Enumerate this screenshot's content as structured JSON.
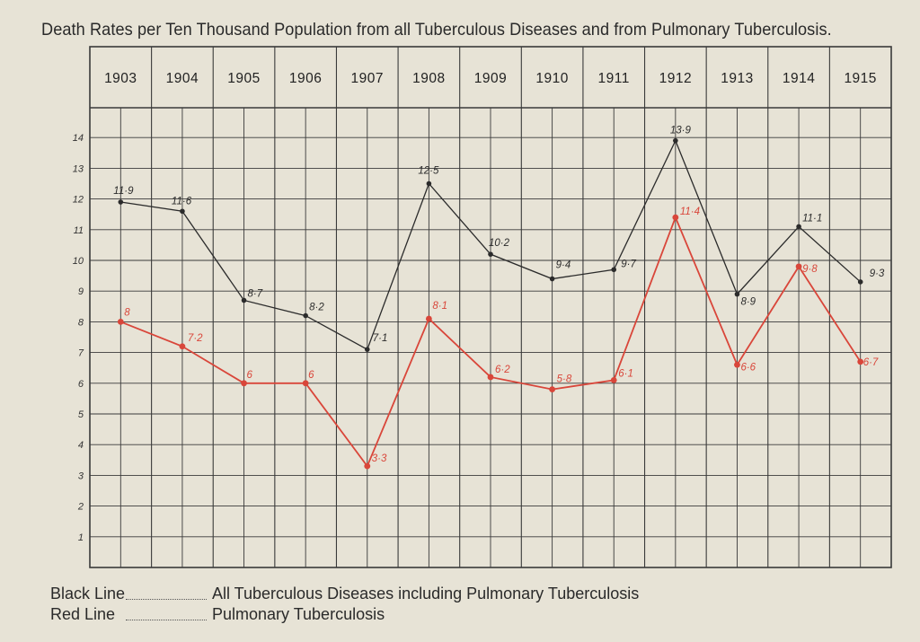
{
  "title": "Death Rates per Ten Thousand Population from all Tuberculous Diseases and from Pulmonary Tuberculosis.",
  "colors": {
    "background": "#e7e3d6",
    "grid": "#3a3a3a",
    "black_line": "#2b2b2b",
    "red_line": "#d9463a"
  },
  "legend": [
    {
      "key": "Black Line",
      "text": "All Tuberculous Diseases including Pulmonary Tuberculosis"
    },
    {
      "key": "Red Line",
      "text": "Pulmonary Tuberculosis"
    }
  ],
  "chart_data": {
    "type": "line",
    "title": "Death Rates per Ten Thousand Population from all Tuberculous Diseases and from Pulmonary Tuberculosis.",
    "categories": [
      "1903",
      "1904",
      "1905",
      "1906",
      "1907",
      "1908",
      "1909",
      "1910",
      "1911",
      "1912",
      "1913",
      "1914",
      "1915"
    ],
    "yticks": [
      "1",
      "2",
      "3",
      "4",
      "5",
      "6",
      "7",
      "8",
      "9",
      "10",
      "11",
      "12",
      "13",
      "14"
    ],
    "ylim": [
      0,
      15
    ],
    "grid": true,
    "legend_position": "bottom-left",
    "series": [
      {
        "name": "All Tuberculous Diseases including Pulmonary Tuberculosis",
        "color": "black",
        "values": [
          11.9,
          11.6,
          8.7,
          8.2,
          7.1,
          12.5,
          10.2,
          9.4,
          9.7,
          13.9,
          8.9,
          11.1,
          9.3
        ],
        "labels": [
          "11·9",
          "11·6",
          "8·7",
          "8·2",
          "7·1",
          "12·5",
          "10·2",
          "9·4",
          "9·7",
          "13·9",
          "8·9",
          "11·1",
          "9·3"
        ]
      },
      {
        "name": "Pulmonary Tuberculosis",
        "color": "red",
        "values": [
          8,
          7.2,
          6,
          6,
          3.3,
          8.1,
          6.2,
          5.8,
          6.1,
          11.4,
          6.6,
          9.8,
          6.7
        ],
        "labels": [
          "8",
          "7·2",
          "6",
          "6",
          "3·3",
          "8·1",
          "6·2",
          "5·8",
          "6·1",
          "11·4",
          "6·6",
          "9·8",
          "6·7"
        ]
      }
    ]
  }
}
